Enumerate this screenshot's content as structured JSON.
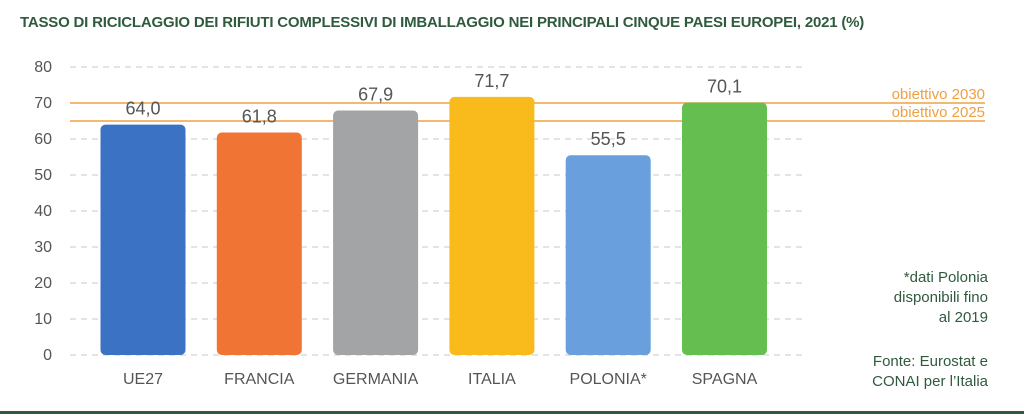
{
  "header": {
    "title": "TASSO DI RICICLAGGIO DEI RIFIUTI COMPLESSIVI DI IMBALLAGGIO NEI PRINCIPALI CINQUE PAESI EUROPEI, 2021 (%)"
  },
  "chart_data": {
    "type": "bar",
    "title": "TASSO DI RICICLAGGIO DEI RIFIUTI COMPLESSIVI DI IMBALLAGGIO NEI PRINCIPALI CINQUE PAESI EUROPEI, 2021 (%)",
    "categories": [
      "UE27",
      "FRANCIA",
      "GERMANIA",
      "ITALIA",
      "POLONIA*",
      "SPAGNA"
    ],
    "values": [
      64.0,
      61.8,
      67.9,
      71.7,
      55.5,
      70.1
    ],
    "value_labels": [
      "64,0",
      "61,8",
      "67,9",
      "71,7",
      "55,5",
      "70,1"
    ],
    "colors": [
      "#3b72c4",
      "#f07535",
      "#a3a4a6",
      "#f9ba1b",
      "#6a9fdd",
      "#64bf50"
    ],
    "ylim": [
      0,
      80
    ],
    "yticks": [
      0,
      10,
      20,
      30,
      40,
      50,
      60,
      70,
      80
    ],
    "grid": true,
    "reference_lines": [
      {
        "label": "obiettivo 2030",
        "value": 70,
        "color": "#f0a040"
      },
      {
        "label": "obiettivo 2025",
        "value": 65,
        "color": "#f0a040"
      }
    ],
    "xlabel": "",
    "ylabel": ""
  },
  "notes": {
    "polonia_line1": "*dati Polonia",
    "polonia_line2": "disponibili fino",
    "polonia_line3": "al 2019",
    "source_line1": "Fonte: Eurostat e",
    "source_line2": "CONAI per l’Italia"
  },
  "colors": {
    "title": "#2f5a3e",
    "axis_text": "#555555",
    "grid": "#c8c8c8"
  }
}
